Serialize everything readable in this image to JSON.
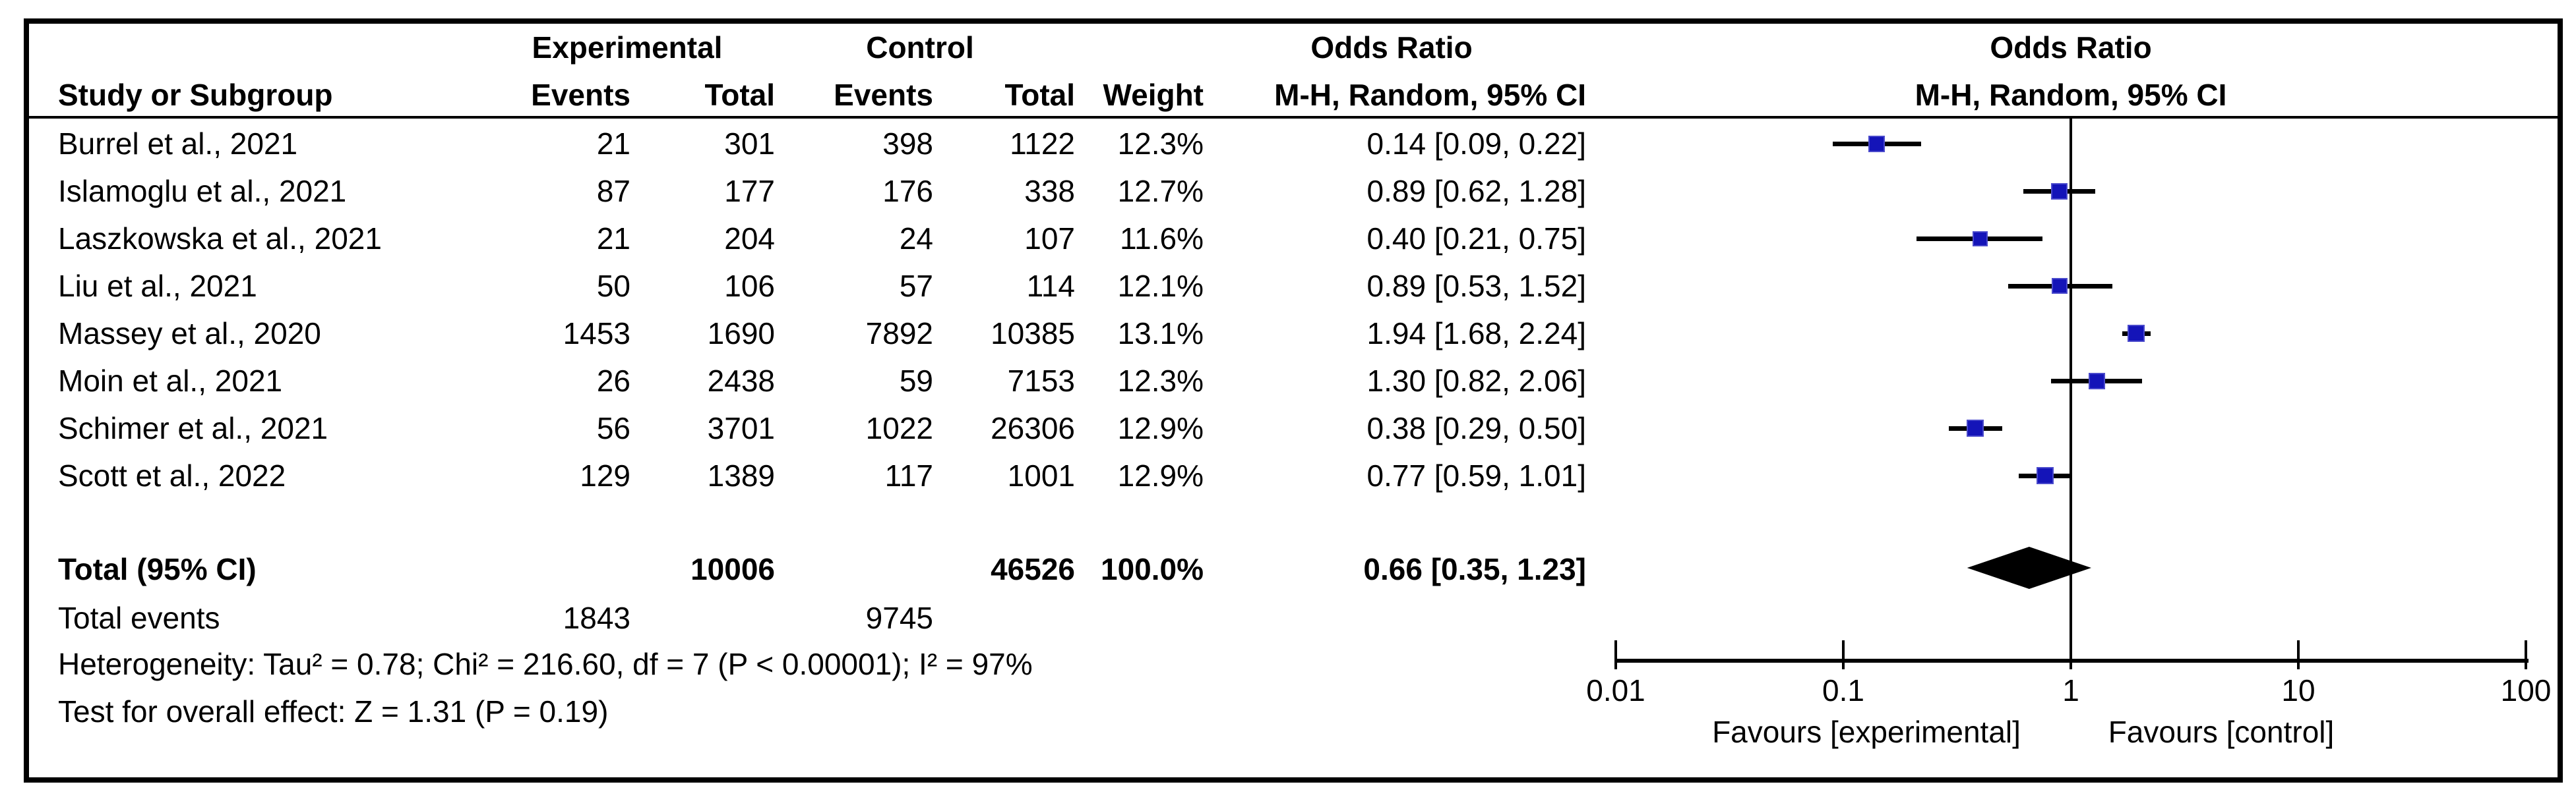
{
  "header": {
    "study_col": "Study or Subgroup",
    "exp_group": "Experimental",
    "ctl_group": "Control",
    "events": "Events",
    "total": "Total",
    "weight": "Weight",
    "or_title": "Odds Ratio",
    "or_sub": "M-H, Random, 95% CI",
    "plot_or_title": "Odds Ratio",
    "plot_or_sub": "M-H, Random, 95% CI"
  },
  "chart_data": {
    "type": "forest",
    "effect_measure": "Odds Ratio",
    "method": "M-H, Random, 95% CI",
    "marker_color": "#1414b8",
    "diamond_color": "#000000",
    "x_axis": {
      "scale": "log10",
      "range": [
        0.01,
        100
      ],
      "ticks": [
        0.01,
        0.1,
        1,
        10,
        100
      ],
      "tick_labels": [
        "0.01",
        "0.1",
        "1",
        "10",
        "100"
      ]
    },
    "favours_left": "Favours [experimental]",
    "favours_right": "Favours [control]",
    "studies": [
      {
        "study": "Burrel et al., 2021",
        "exp_events": "21",
        "exp_total": "301",
        "ctl_events": "398",
        "ctl_total": "1122",
        "weight": "12.3%",
        "weight_pct": 12.3,
        "ci_label": "0.14 [0.09, 0.22]",
        "or": 0.14,
        "lo": 0.09,
        "hi": 0.22
      },
      {
        "study": "Islamoglu et al., 2021",
        "exp_events": "87",
        "exp_total": "177",
        "ctl_events": "176",
        "ctl_total": "338",
        "weight": "12.7%",
        "weight_pct": 12.7,
        "ci_label": "0.89 [0.62, 1.28]",
        "or": 0.89,
        "lo": 0.62,
        "hi": 1.28
      },
      {
        "study": "Laszkowska et al., 2021",
        "exp_events": "21",
        "exp_total": "204",
        "ctl_events": "24",
        "ctl_total": "107",
        "weight": "11.6%",
        "weight_pct": 11.6,
        "ci_label": "0.40 [0.21, 0.75]",
        "or": 0.4,
        "lo": 0.21,
        "hi": 0.75
      },
      {
        "study": "Liu et al., 2021",
        "exp_events": "50",
        "exp_total": "106",
        "ctl_events": "57",
        "ctl_total": "114",
        "weight": "12.1%",
        "weight_pct": 12.1,
        "ci_label": "0.89 [0.53, 1.52]",
        "or": 0.89,
        "lo": 0.53,
        "hi": 1.52
      },
      {
        "study": "Massey et al., 2020",
        "exp_events": "1453",
        "exp_total": "1690",
        "ctl_events": "7892",
        "ctl_total": "10385",
        "weight": "13.1%",
        "weight_pct": 13.1,
        "ci_label": "1.94 [1.68, 2.24]",
        "or": 1.94,
        "lo": 1.68,
        "hi": 2.24
      },
      {
        "study": "Moin et al., 2021",
        "exp_events": "26",
        "exp_total": "2438",
        "ctl_events": "59",
        "ctl_total": "7153",
        "weight": "12.3%",
        "weight_pct": 12.3,
        "ci_label": "1.30 [0.82, 2.06]",
        "or": 1.3,
        "lo": 0.82,
        "hi": 2.06
      },
      {
        "study": "Schimer et al., 2021",
        "exp_events": "56",
        "exp_total": "3701",
        "ctl_events": "1022",
        "ctl_total": "26306",
        "weight": "12.9%",
        "weight_pct": 12.9,
        "ci_label": "0.38 [0.29, 0.50]",
        "or": 0.38,
        "lo": 0.29,
        "hi": 0.5
      },
      {
        "study": "Scott et al., 2022",
        "exp_events": "129",
        "exp_total": "1389",
        "ctl_events": "117",
        "ctl_total": "1001",
        "weight": "12.9%",
        "weight_pct": 12.9,
        "ci_label": "0.77 [0.59, 1.01]",
        "or": 0.77,
        "lo": 0.59,
        "hi": 1.01
      }
    ],
    "total": {
      "label": "Total (95% CI)",
      "exp_total": "10006",
      "ctl_total": "46526",
      "weight": "100.0%",
      "ci_label": "0.66 [0.35, 1.23]",
      "or": 0.66,
      "lo": 0.35,
      "hi": 1.23
    },
    "total_events": {
      "label": "Total events",
      "exp": "1843",
      "ctl": "9745"
    },
    "heterogeneity": "Heterogeneity: Tau² = 0.78; Chi² = 216.60, df = 7 (P < 0.00001); I² = 97%",
    "overall_effect": "Test for overall effect: Z = 1.31 (P = 0.19)"
  }
}
